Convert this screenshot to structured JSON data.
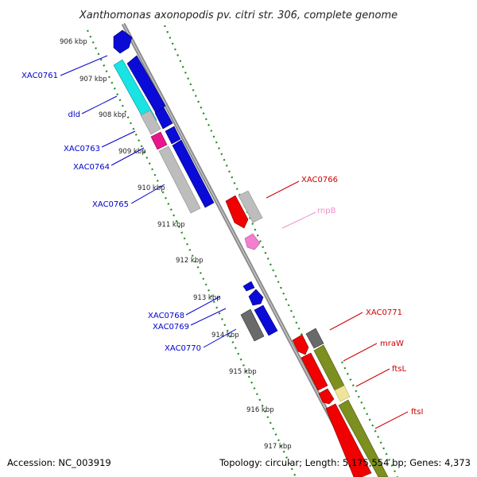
{
  "title": "Xanthomonas axonopodis pv. citri str. 306, complete genome",
  "footer": {
    "accession": "Accession: NC_003919",
    "summary": "Topology: circular; Length: 5,175,554 bp; Genes: 4,373"
  },
  "colors": {
    "backbone": "#8a8a8a",
    "tick": "#228b22",
    "blue": "#0b0bd8",
    "cyan": "#19e3e3",
    "grey": "#bdbdbd",
    "darkgrey": "#6a6a6a",
    "magenta": "#e8168a",
    "red": "#f00000",
    "pink": "#f27fd0",
    "olive": "#7c8f1f",
    "khaki": "#efe49a",
    "label_blue": "#0000cc",
    "label_red": "#cc0000",
    "label_pink": "#f08fcf"
  },
  "ticks": [
    {
      "label": "906 kbp"
    },
    {
      "label": "907 kbp"
    },
    {
      "label": "908 kbp"
    },
    {
      "label": "909 kbp"
    },
    {
      "label": "910 kbp"
    },
    {
      "label": "911 kbp"
    },
    {
      "label": "912 kbp"
    },
    {
      "label": "913 kbp"
    },
    {
      "label": "914 kbp"
    },
    {
      "label": "915 kbp"
    },
    {
      "label": "916 kbp"
    },
    {
      "label": "917 kbp"
    }
  ],
  "gene_labels": {
    "XAC0761": "XAC0761",
    "dld": "dld",
    "XAC0763": "XAC0763",
    "XAC0764": "XAC0764",
    "XAC0765": "XAC0765",
    "XAC0768": "XAC0768",
    "XAC0769": "XAC0769",
    "XAC0770": "XAC0770",
    "XAC0766": "XAC0766",
    "rnpB": "rnpB",
    "XAC0771": "XAC0771",
    "mraW": "mraW",
    "ftsL": "ftsL",
    "ftsI": "ftsI"
  }
}
